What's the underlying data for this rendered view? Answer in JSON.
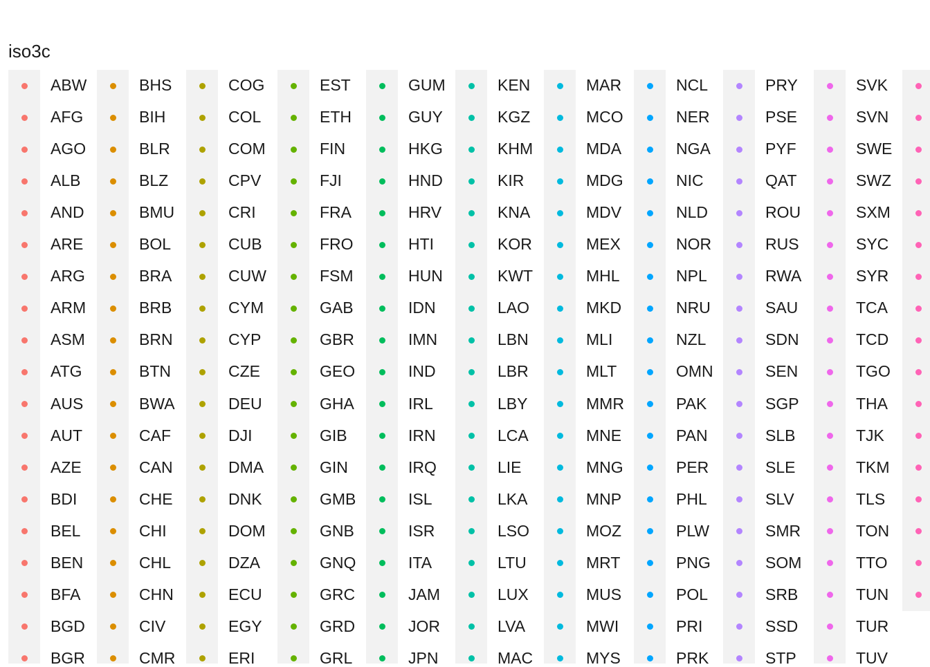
{
  "chart_data": {
    "type": "legend",
    "legend_title": "iso3c",
    "columns": [
      {
        "color": "#F8766D",
        "labels": [
          "ABW",
          "AFG",
          "AGO",
          "ALB",
          "AND",
          "ARE",
          "ARG",
          "ARM",
          "ASM",
          "ATG",
          "AUS",
          "AUT",
          "AZE",
          "BDI",
          "BEL",
          "BEN",
          "BFA",
          "BGD",
          "BGR"
        ]
      },
      {
        "color": "#DB8E00",
        "labels": [
          "BHS",
          "BIH",
          "BLR",
          "BLZ",
          "BMU",
          "BOL",
          "BRA",
          "BRB",
          "BRN",
          "BTN",
          "BWA",
          "CAF",
          "CAN",
          "CHE",
          "CHI",
          "CHL",
          "CHN",
          "CIV",
          "CMR"
        ]
      },
      {
        "color": "#AEA200",
        "labels": [
          "COG",
          "COL",
          "COM",
          "CPV",
          "CRI",
          "CUB",
          "CUW",
          "CYM",
          "CYP",
          "CZE",
          "DEU",
          "DJI",
          "DMA",
          "DNK",
          "DOM",
          "DZA",
          "ECU",
          "EGY",
          "ERI"
        ]
      },
      {
        "color": "#64B200",
        "labels": [
          "EST",
          "ETH",
          "FIN",
          "FJI",
          "FRA",
          "FRO",
          "FSM",
          "GAB",
          "GBR",
          "GEO",
          "GHA",
          "GIB",
          "GIN",
          "GMB",
          "GNB",
          "GNQ",
          "GRC",
          "GRD",
          "GRL"
        ]
      },
      {
        "color": "#00BD5C",
        "labels": [
          "GUM",
          "GUY",
          "HKG",
          "HND",
          "HRV",
          "HTI",
          "HUN",
          "IDN",
          "IMN",
          "IND",
          "IRL",
          "IRN",
          "IRQ",
          "ISL",
          "ISR",
          "ITA",
          "JAM",
          "JOR",
          "JPN"
        ]
      },
      {
        "color": "#00C1A7",
        "labels": [
          "KEN",
          "KGZ",
          "KHM",
          "KIR",
          "KNA",
          "KOR",
          "KWT",
          "LAO",
          "LBN",
          "LBR",
          "LBY",
          "LCA",
          "LIE",
          "LKA",
          "LSO",
          "LTU",
          "LUX",
          "LVA",
          "MAC"
        ]
      },
      {
        "color": "#00BADE",
        "labels": [
          "MAR",
          "MCO",
          "MDA",
          "MDG",
          "MDV",
          "MEX",
          "MHL",
          "MKD",
          "MLI",
          "MLT",
          "MMR",
          "MNE",
          "MNG",
          "MNP",
          "MOZ",
          "MRT",
          "MUS",
          "MWI",
          "MYS"
        ]
      },
      {
        "color": "#00A6FF",
        "labels": [
          "NCL",
          "NER",
          "NGA",
          "NIC",
          "NLD",
          "NOR",
          "NPL",
          "NRU",
          "NZL",
          "OMN",
          "PAK",
          "PAN",
          "PER",
          "PHL",
          "PLW",
          "PNG",
          "POL",
          "PRI",
          "PRK"
        ]
      },
      {
        "color": "#B385FF",
        "labels": [
          "PRY",
          "PSE",
          "PYF",
          "QAT",
          "ROU",
          "RUS",
          "RWA",
          "SAU",
          "SDN",
          "SEN",
          "SGP",
          "SLB",
          "SLE",
          "SLV",
          "SMR",
          "SOM",
          "SRB",
          "SSD",
          "STP"
        ]
      },
      {
        "color": "#EF67EB",
        "labels": [
          "SVK",
          "SVN",
          "SWE",
          "SWZ",
          "SXM",
          "SYC",
          "SYR",
          "TCA",
          "TCD",
          "TGO",
          "THA",
          "TJK",
          "TKM",
          "TLS",
          "TON",
          "TTO",
          "TUN",
          "TUR",
          "TUV"
        ]
      },
      {
        "color": "#FF63B6",
        "labels": [
          "",
          "",
          "",
          "",
          "",
          "",
          "",
          "",
          "",
          "",
          "",
          "",
          "",
          "",
          "",
          "",
          "",
          "",
          ""
        ]
      }
    ]
  }
}
